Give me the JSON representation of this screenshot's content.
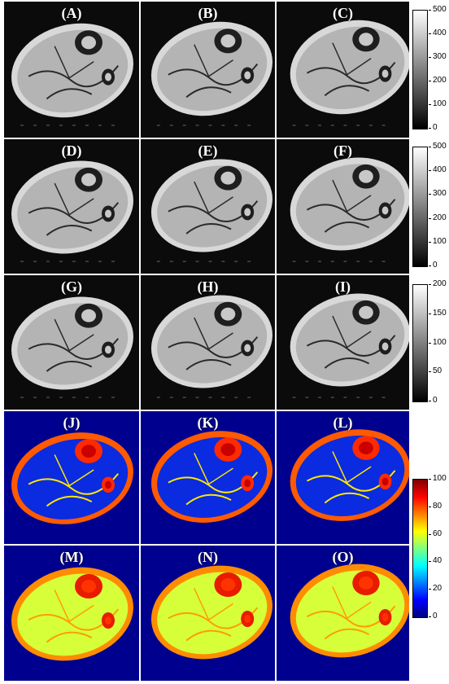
{
  "figure": {
    "colormaps": {
      "gray": [
        "#000000",
        "#ffffff"
      ],
      "jet": [
        "#00007f",
        "#0000ff",
        "#007fff",
        "#00ffff",
        "#7fff7f",
        "#ffff00",
        "#ff7f00",
        "#ff0000",
        "#7f0000"
      ]
    },
    "rows": [
      {
        "id": "row1",
        "kind": "gray",
        "panels": [
          {
            "label": "(A)"
          },
          {
            "label": "(B)"
          },
          {
            "label": "(C)"
          }
        ]
      },
      {
        "id": "row2",
        "kind": "gray",
        "panels": [
          {
            "label": "(D)"
          },
          {
            "label": "(E)"
          },
          {
            "label": "(F)"
          }
        ]
      },
      {
        "id": "row3",
        "kind": "gray",
        "panels": [
          {
            "label": "(G)"
          },
          {
            "label": "(H)"
          },
          {
            "label": "(I)"
          }
        ]
      },
      {
        "id": "row4",
        "kind": "map-low",
        "panels": [
          {
            "label": "(J)"
          },
          {
            "label": "(K)"
          },
          {
            "label": "(L)"
          }
        ]
      },
      {
        "id": "row5",
        "kind": "map-high",
        "panels": [
          {
            "label": "(M)"
          },
          {
            "label": "(N)"
          },
          {
            "label": "(O)"
          }
        ]
      }
    ],
    "colorbars": [
      {
        "id": "cbar-row1",
        "colormap": "gray",
        "ticks": [
          "500",
          "400",
          "300",
          "200",
          "100",
          "0"
        ]
      },
      {
        "id": "cbar-row2",
        "colormap": "gray",
        "ticks": [
          "500",
          "400",
          "300",
          "200",
          "100",
          "0"
        ]
      },
      {
        "id": "cbar-row3",
        "colormap": "gray",
        "ticks": [
          "200",
          "150",
          "100",
          "50",
          "0"
        ]
      },
      {
        "id": "cbar-maps",
        "colormap": "jet",
        "ticks": [
          "100",
          "80",
          "60",
          "40",
          "20",
          "0"
        ]
      }
    ]
  }
}
